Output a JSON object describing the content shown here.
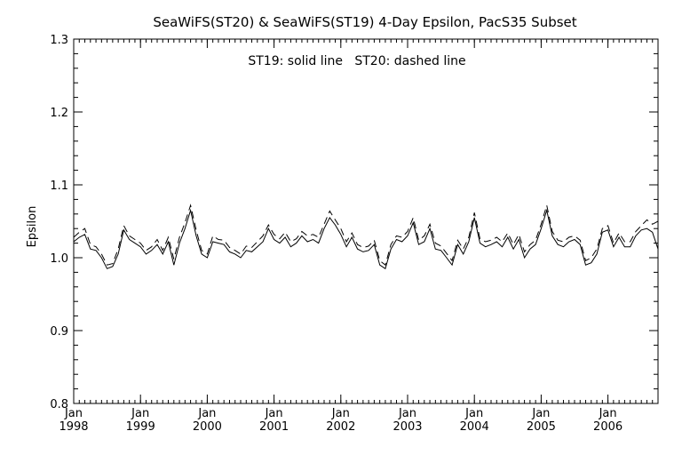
{
  "chart_data": {
    "type": "line",
    "title": "SeaWiFS(ST20) & SeaWiFS(ST19) 4-Day Epsilon, PacS35 Subset",
    "annotation": "ST19: solid line   ST20: dashed line",
    "xlabel": "",
    "ylabel": "Epsilon",
    "xlim": [
      "1998-01",
      "2006-10"
    ],
    "ylim": [
      0.8,
      1.3
    ],
    "y_ticks": [
      "0.8",
      "0.9",
      "1.0",
      "1.1",
      "1.2",
      "1.3"
    ],
    "x_ticks": [
      {
        "month": "Jan",
        "year": "1998"
      },
      {
        "month": "Jan",
        "year": "1999"
      },
      {
        "month": "Jan",
        "year": "2000"
      },
      {
        "month": "Jan",
        "year": "2001"
      },
      {
        "month": "Jan",
        "year": "2002"
      },
      {
        "month": "Jan",
        "year": "2003"
      },
      {
        "month": "Jan",
        "year": "2004"
      },
      {
        "month": "Jan",
        "year": "2005"
      },
      {
        "month": "Jan",
        "year": "2006"
      }
    ],
    "grid": false,
    "x": [
      "1998-01",
      "1998-02",
      "1998-03",
      "1998-04",
      "1998-05",
      "1998-06",
      "1998-07",
      "1998-08",
      "1998-09",
      "1998-10",
      "1998-11",
      "1998-12",
      "1999-01",
      "1999-02",
      "1999-03",
      "1999-04",
      "1999-05",
      "1999-06",
      "1999-07",
      "1999-08",
      "1999-09",
      "1999-10",
      "1999-11",
      "1999-12",
      "2000-01",
      "2000-02",
      "2000-03",
      "2000-04",
      "2000-05",
      "2000-06",
      "2000-07",
      "2000-08",
      "2000-09",
      "2000-10",
      "2000-11",
      "2000-12",
      "2001-01",
      "2001-02",
      "2001-03",
      "2001-04",
      "2001-05",
      "2001-06",
      "2001-07",
      "2001-08",
      "2001-09",
      "2001-10",
      "2001-11",
      "2001-12",
      "2002-01",
      "2002-02",
      "2002-03",
      "2002-04",
      "2002-05",
      "2002-06",
      "2002-07",
      "2002-08",
      "2002-09",
      "2002-10",
      "2002-11",
      "2002-12",
      "2003-01",
      "2003-02",
      "2003-03",
      "2003-04",
      "2003-05",
      "2003-06",
      "2003-07",
      "2003-08",
      "2003-09",
      "2003-10",
      "2003-11",
      "2003-12",
      "2004-01",
      "2004-02",
      "2004-03",
      "2004-04",
      "2004-05",
      "2004-06",
      "2004-07",
      "2004-08",
      "2004-09",
      "2004-10",
      "2004-11",
      "2004-12",
      "2005-01",
      "2005-02",
      "2005-03",
      "2005-04",
      "2005-05",
      "2005-06",
      "2005-07",
      "2005-08",
      "2005-09",
      "2005-10",
      "2005-11",
      "2005-12",
      "2006-01",
      "2006-02",
      "2006-03",
      "2006-04",
      "2006-05",
      "2006-06",
      "2006-07",
      "2006-08",
      "2006-09",
      "2006-10"
    ],
    "series": [
      {
        "name": "ST19",
        "style": "solid",
        "values": [
          1.022,
          1.028,
          1.032,
          1.012,
          1.01,
          1.0,
          0.985,
          0.988,
          1.005,
          1.038,
          1.025,
          1.02,
          1.015,
          1.005,
          1.01,
          1.018,
          1.005,
          1.022,
          0.99,
          1.02,
          1.04,
          1.065,
          1.03,
          1.005,
          1.0,
          1.022,
          1.02,
          1.018,
          1.008,
          1.005,
          1.0,
          1.01,
          1.008,
          1.015,
          1.022,
          1.04,
          1.025,
          1.02,
          1.028,
          1.015,
          1.02,
          1.03,
          1.022,
          1.025,
          1.02,
          1.04,
          1.055,
          1.045,
          1.032,
          1.015,
          1.028,
          1.012,
          1.008,
          1.01,
          1.018,
          0.99,
          0.985,
          1.012,
          1.025,
          1.022,
          1.03,
          1.048,
          1.018,
          1.022,
          1.04,
          1.012,
          1.01,
          1.0,
          0.99,
          1.018,
          1.005,
          1.022,
          1.055,
          1.02,
          1.015,
          1.018,
          1.022,
          1.015,
          1.028,
          1.012,
          1.025,
          1.0,
          1.012,
          1.018,
          1.04,
          1.065,
          1.03,
          1.018,
          1.015,
          1.022,
          1.025,
          1.018,
          0.99,
          0.993,
          1.005,
          1.035,
          1.038,
          1.015,
          1.028,
          1.015,
          1.015,
          1.03,
          1.038,
          1.04,
          1.035,
          1.012
        ]
      },
      {
        "name": "ST20",
        "style": "dashed",
        "values": [
          1.028,
          1.035,
          1.04,
          1.018,
          1.015,
          1.005,
          0.99,
          0.992,
          1.012,
          1.044,
          1.03,
          1.025,
          1.02,
          1.01,
          1.015,
          1.025,
          1.01,
          1.028,
          0.998,
          1.028,
          1.048,
          1.072,
          1.038,
          1.01,
          1.005,
          1.03,
          1.025,
          1.024,
          1.014,
          1.01,
          1.005,
          1.016,
          1.014,
          1.022,
          1.03,
          1.045,
          1.032,
          1.026,
          1.035,
          1.022,
          1.026,
          1.036,
          1.03,
          1.032,
          1.028,
          1.046,
          1.064,
          1.052,
          1.04,
          1.022,
          1.034,
          1.018,
          1.014,
          1.016,
          1.024,
          0.996,
          0.99,
          1.018,
          1.03,
          1.028,
          1.036,
          1.055,
          1.024,
          1.03,
          1.046,
          1.02,
          1.016,
          1.006,
          0.996,
          1.024,
          1.012,
          1.028,
          1.062,
          1.026,
          1.022,
          1.024,
          1.028,
          1.022,
          1.034,
          1.018,
          1.032,
          1.008,
          1.018,
          1.024,
          1.046,
          1.072,
          1.036,
          1.024,
          1.022,
          1.028,
          1.03,
          1.024,
          0.996,
          1.0,
          1.012,
          1.04,
          1.044,
          1.02,
          1.034,
          1.022,
          1.022,
          1.036,
          1.044,
          1.052,
          1.046,
          1.05
        ]
      }
    ]
  }
}
